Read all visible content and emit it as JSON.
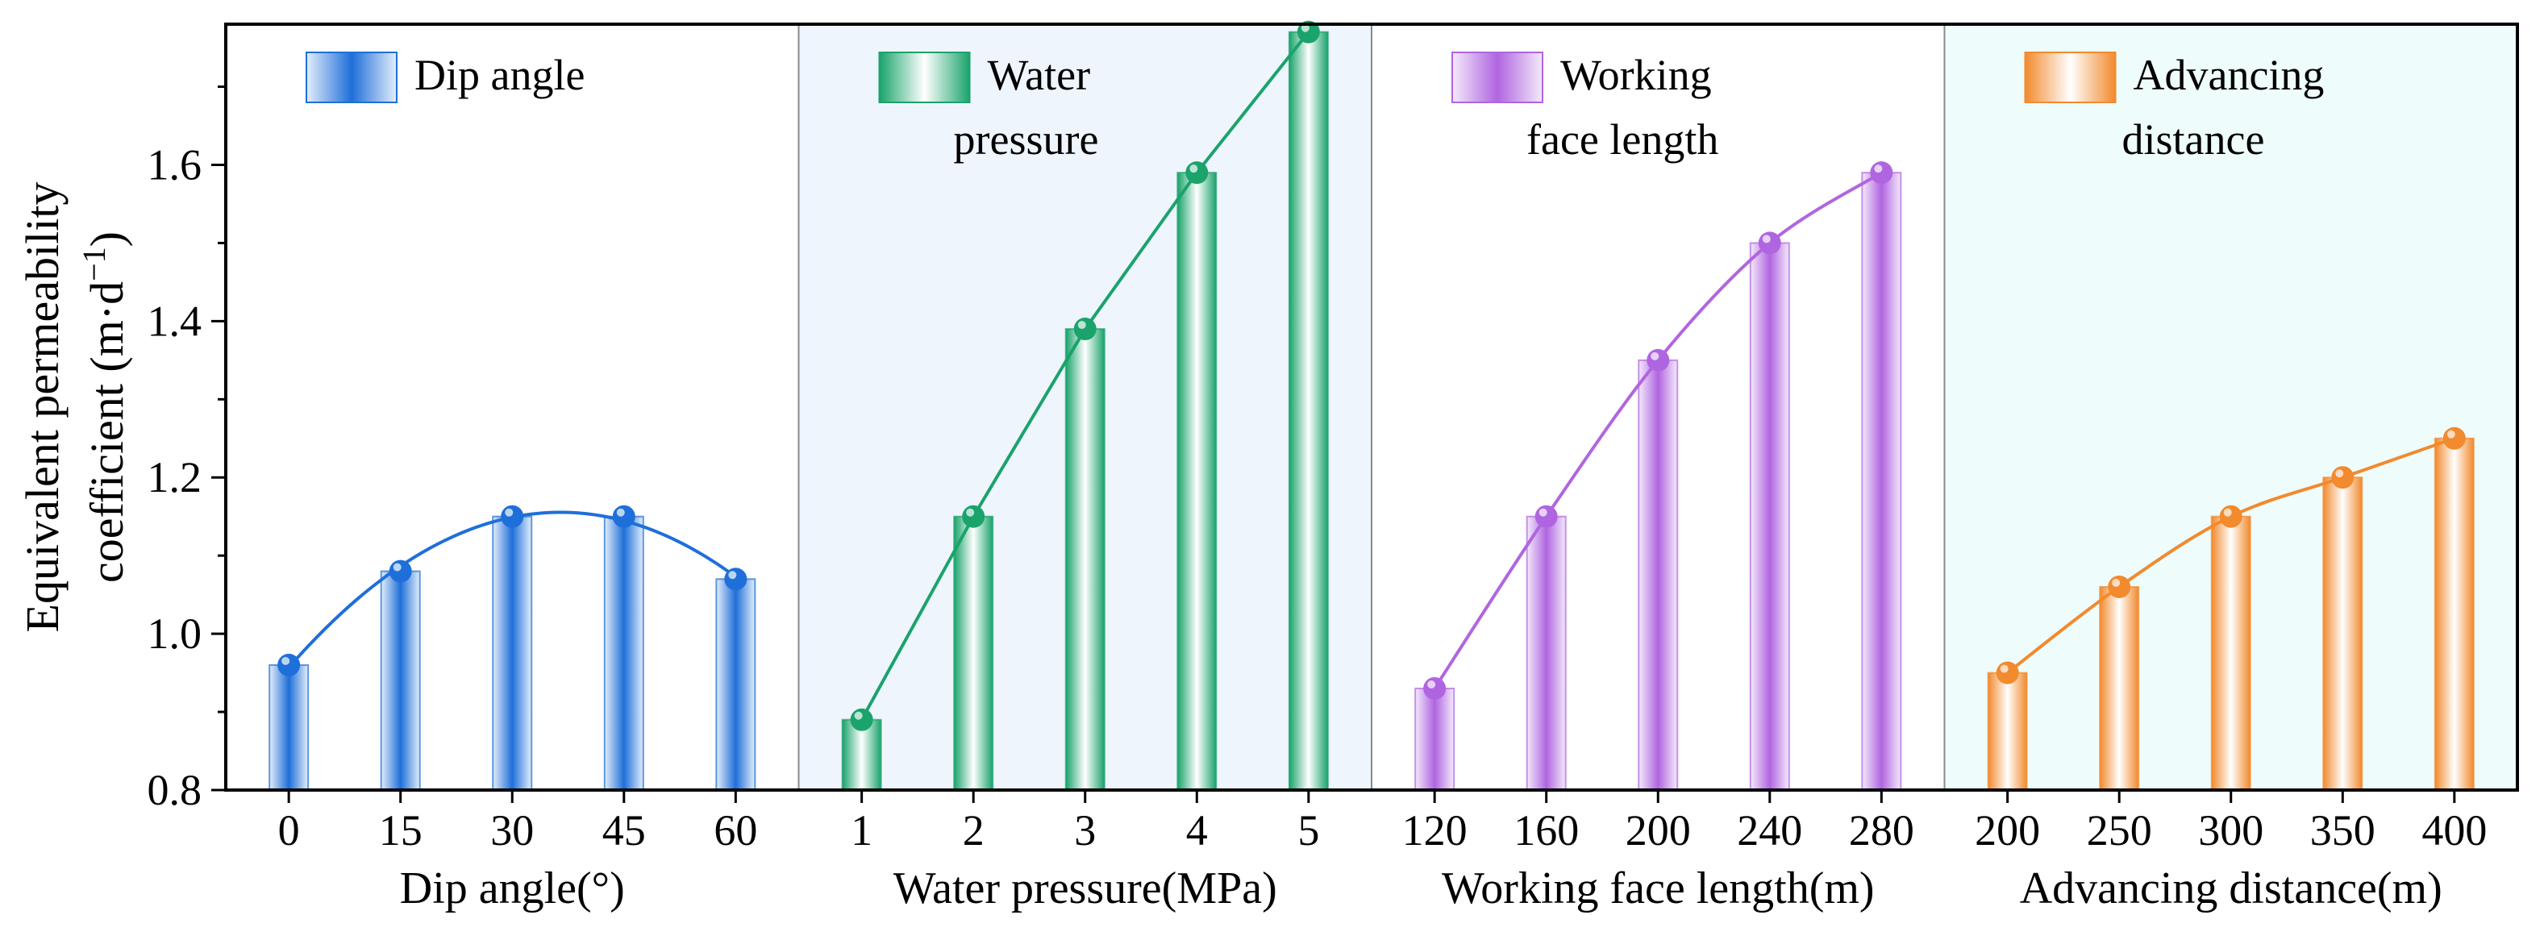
{
  "chart_data": {
    "type": "bar",
    "ylabel": "Equivalent permeability coefficient (m·d⁻¹)",
    "ylabel_lines": [
      "Equivalent permeability",
      "coefficient (m·d",
      "−1",
      ")"
    ],
    "ylim": [
      0.8,
      1.78
    ],
    "yticks": [
      "0.8",
      "1.0",
      "1.2",
      "1.4",
      "1.6"
    ],
    "ytick_values": [
      0.8,
      1.0,
      1.2,
      1.4,
      1.6
    ],
    "panels": [
      {
        "id": "dip",
        "xlabel": "Dip angle(°)",
        "legend_lines": [
          "Dip angle"
        ],
        "categories": [
          "0",
          "15",
          "30",
          "45",
          "60"
        ],
        "values": [
          0.96,
          1.08,
          1.15,
          1.15,
          1.07
        ],
        "color": "#1E6FD9",
        "light": "#E4EEFB",
        "background": "#FFFFFF",
        "curve": "smooth"
      },
      {
        "id": "water",
        "xlabel": "Water pressure(MPa)",
        "legend_lines": [
          "Water",
          "pressure"
        ],
        "categories": [
          "1",
          "2",
          "3",
          "4",
          "5"
        ],
        "values": [
          0.89,
          1.15,
          1.39,
          1.59,
          1.77
        ],
        "color": "#1AA36B",
        "light": "#E6F6EE",
        "background": "#EEF5FD",
        "curve": "line"
      },
      {
        "id": "length",
        "xlabel": "Working face length(m)",
        "legend_lines": [
          "Working",
          "face length"
        ],
        "categories": [
          "120",
          "160",
          "200",
          "240",
          "280"
        ],
        "values": [
          0.93,
          1.15,
          1.35,
          1.5,
          1.59
        ],
        "color": "#B065E0",
        "light": "#F4EAFB",
        "background": "#FFFFFF",
        "curve": "smooth"
      },
      {
        "id": "advance",
        "xlabel": "Advancing distance(m)",
        "legend_lines": [
          "Advancing",
          "distance"
        ],
        "categories": [
          "200",
          "250",
          "300",
          "350",
          "400"
        ],
        "values": [
          0.95,
          1.06,
          1.15,
          1.2,
          1.25
        ],
        "color": "#F28A2E",
        "light": "#FDEFE4",
        "background": "#EEFCFB",
        "curve": "smooth"
      }
    ]
  }
}
